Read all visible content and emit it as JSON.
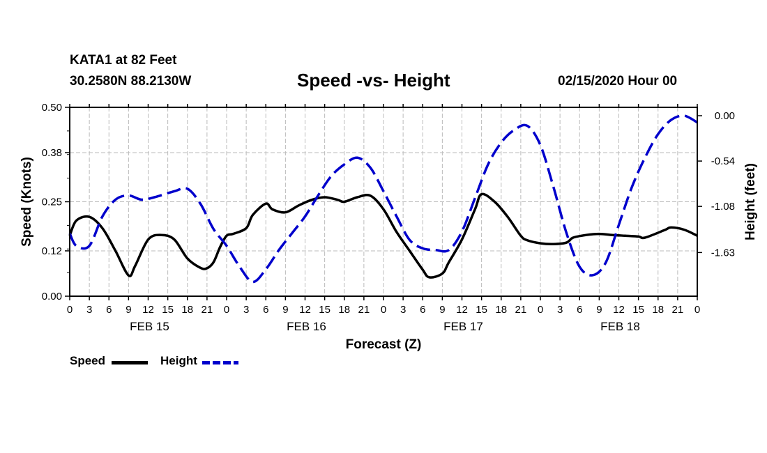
{
  "header": {
    "station": "KATA1 at 82 Feet",
    "coords": "30.2580N 88.2130W",
    "title": "Speed -vs- Height",
    "run": "02/15/2020 Hour 00"
  },
  "chart_data": {
    "type": "line",
    "title": "Speed -vs- Height",
    "xlabel": "Forecast (Z)",
    "ylabel": "Speed (Knots)",
    "y2label": "Height (feet)",
    "grid": true,
    "legend_placement": "bottom-left",
    "x_hours_range": [
      0,
      96
    ],
    "x_tick_step_hours": 3,
    "x_tick_labels": [
      "0",
      "3",
      "6",
      "9",
      "12",
      "15",
      "18",
      "21",
      "0",
      "3",
      "6",
      "9",
      "12",
      "15",
      "18",
      "21",
      "0",
      "3",
      "6",
      "9",
      "12",
      "15",
      "18",
      "21",
      "0",
      "3",
      "6",
      "9",
      "12",
      "15",
      "18",
      "21",
      "0"
    ],
    "day_labels": [
      {
        "label": "FEB 15",
        "hour": 12
      },
      {
        "label": "FEB 16",
        "hour": 36
      },
      {
        "label": "FEB 17",
        "hour": 60
      },
      {
        "label": "FEB 18",
        "hour": 84
      }
    ],
    "y_left": {
      "range": [
        0.0,
        0.5
      ],
      "ticks": [
        "0.00",
        "0.12",
        "0.25",
        "0.38",
        "0.50"
      ]
    },
    "y_right": {
      "range": [
        -2.15,
        0.1
      ],
      "ticks": [
        "0.00",
        "-0.54",
        "-1.08",
        "-1.63"
      ]
    },
    "series": [
      {
        "name": "Speed",
        "axis": "left",
        "color": "#000000",
        "style": "solid",
        "hours": [
          0,
          1,
          3,
          5,
          7,
          9,
          10,
          12,
          14,
          16,
          18,
          20,
          21,
          22,
          23,
          24,
          25,
          27,
          28,
          30,
          31,
          33,
          35,
          37,
          39,
          41,
          42,
          44,
          46,
          48,
          50,
          52,
          54,
          55,
          57,
          58,
          60,
          62,
          63,
          65,
          67,
          69,
          70,
          72,
          74,
          76,
          77,
          79,
          81,
          83,
          85,
          87,
          88,
          91,
          92,
          94,
          96
        ],
        "values": [
          0.16,
          0.2,
          0.21,
          0.18,
          0.12,
          0.055,
          0.08,
          0.15,
          0.162,
          0.15,
          0.1,
          0.075,
          0.074,
          0.09,
          0.13,
          0.16,
          0.165,
          0.18,
          0.215,
          0.245,
          0.23,
          0.222,
          0.24,
          0.255,
          0.262,
          0.255,
          0.25,
          0.262,
          0.266,
          0.23,
          0.17,
          0.12,
          0.07,
          0.05,
          0.06,
          0.09,
          0.15,
          0.23,
          0.27,
          0.25,
          0.21,
          0.16,
          0.148,
          0.14,
          0.138,
          0.142,
          0.155,
          0.162,
          0.165,
          0.162,
          0.16,
          0.158,
          0.155,
          0.175,
          0.182,
          0.176,
          0.16
        ]
      },
      {
        "name": "Height",
        "axis": "right",
        "color": "#0000cc",
        "style": "dashed",
        "hours": [
          0,
          1,
          3,
          5,
          7,
          9,
          11,
          13,
          16,
          18,
          20,
          22,
          24,
          26,
          28,
          30,
          32,
          34,
          36,
          38,
          40,
          42,
          44,
          46,
          48,
          50,
          52,
          54,
          56,
          58,
          60,
          62,
          64,
          66,
          68,
          70,
          72,
          74,
          76,
          78,
          80,
          82,
          84,
          86,
          88,
          90,
          92,
          94,
          96
        ],
        "values": [
          -1.4,
          -1.55,
          -1.55,
          -1.2,
          -1.0,
          -0.95,
          -1.0,
          -0.97,
          -0.9,
          -0.87,
          -1.05,
          -1.35,
          -1.55,
          -1.8,
          -1.98,
          -1.83,
          -1.6,
          -1.4,
          -1.2,
          -0.95,
          -0.72,
          -0.58,
          -0.5,
          -0.62,
          -0.9,
          -1.2,
          -1.48,
          -1.58,
          -1.6,
          -1.6,
          -1.38,
          -0.98,
          -0.58,
          -0.32,
          -0.17,
          -0.12,
          -0.35,
          -0.85,
          -1.4,
          -1.8,
          -1.9,
          -1.75,
          -1.3,
          -0.85,
          -0.5,
          -0.22,
          -0.05,
          0.0,
          -0.08
        ]
      }
    ]
  },
  "legend": {
    "speed_label": "Speed",
    "height_label": "Height"
  }
}
